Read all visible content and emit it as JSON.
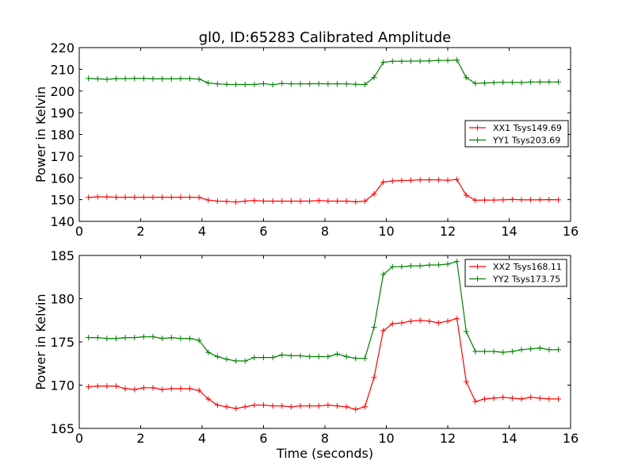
{
  "title": "gl0, ID:65283 Calibrated Amplitude",
  "colors": {
    "xx": "#ff0000",
    "yy": "#008000",
    "axis": "#000000",
    "background": "#ffffff"
  },
  "chart_data": [
    {
      "type": "line",
      "ylabel": "Power in Kelvin",
      "xlabel": "",
      "xlim": [
        0,
        16
      ],
      "ylim": [
        140,
        220
      ],
      "xticks": [
        0,
        2,
        4,
        6,
        8,
        10,
        12,
        14,
        16
      ],
      "yticks": [
        140,
        150,
        160,
        170,
        180,
        190,
        200,
        210,
        220
      ],
      "grid": false,
      "legend_position": "center-right",
      "x": [
        0.3,
        0.6,
        0.9,
        1.2,
        1.5,
        1.8,
        2.1,
        2.4,
        2.7,
        3.0,
        3.3,
        3.6,
        3.9,
        4.2,
        4.5,
        4.8,
        5.1,
        5.4,
        5.7,
        6.0,
        6.3,
        6.6,
        6.9,
        7.2,
        7.5,
        7.8,
        8.1,
        8.4,
        8.7,
        9.0,
        9.3,
        9.6,
        9.9,
        10.2,
        10.5,
        10.8,
        11.1,
        11.4,
        11.7,
        12.0,
        12.3,
        12.6,
        12.9,
        13.2,
        13.5,
        13.8,
        14.1,
        14.4,
        14.7,
        15.0,
        15.3,
        15.6
      ],
      "series": [
        {
          "name": "XX1 Tsys149.69",
          "color": "#ff0000",
          "values": [
            151,
            151.3,
            151.3,
            151.1,
            151.1,
            151.1,
            151.1,
            151.1,
            151.1,
            151.1,
            151.1,
            151.1,
            151.0,
            149.8,
            149.3,
            149.2,
            148.9,
            149.3,
            149.6,
            149.3,
            149.3,
            149.3,
            149.3,
            149.3,
            149.3,
            149.6,
            149.3,
            149.3,
            149.3,
            149.0,
            149.3,
            152.6,
            158.1,
            158.6,
            158.8,
            158.9,
            159.1,
            159.1,
            159.1,
            158.9,
            159.3,
            152.0,
            149.7,
            149.8,
            149.8,
            149.9,
            150.1,
            149.9,
            149.9,
            149.9,
            150.0,
            149.9
          ]
        },
        {
          "name": "YY1 Tsys203.69",
          "color": "#008000",
          "values": [
            205.8,
            205.6,
            205.4,
            205.7,
            205.7,
            205.8,
            205.8,
            205.6,
            205.6,
            205.6,
            205.7,
            205.7,
            205.5,
            203.7,
            203.3,
            203.1,
            203.0,
            203.0,
            203.0,
            203.4,
            202.9,
            203.5,
            203.3,
            203.3,
            203.3,
            203.4,
            203.3,
            203.3,
            203.3,
            203.1,
            203.0,
            206.3,
            213.2,
            213.7,
            213.7,
            213.8,
            213.8,
            213.9,
            214.1,
            214.1,
            214.3,
            206.2,
            203.5,
            203.7,
            203.9,
            204.0,
            204.0,
            203.9,
            204.2,
            204.2,
            204.2,
            204.2
          ]
        }
      ]
    },
    {
      "type": "line",
      "ylabel": "Power in Kelvin",
      "xlabel": "Time (seconds)",
      "xlim": [
        0,
        16
      ],
      "ylim": [
        165,
        185
      ],
      "xticks": [
        0,
        2,
        4,
        6,
        8,
        10,
        12,
        14,
        16
      ],
      "yticks": [
        165,
        170,
        175,
        180,
        185
      ],
      "grid": false,
      "legend_position": "top-right",
      "x": [
        0.3,
        0.6,
        0.9,
        1.2,
        1.5,
        1.8,
        2.1,
        2.4,
        2.7,
        3.0,
        3.3,
        3.6,
        3.9,
        4.2,
        4.5,
        4.8,
        5.1,
        5.4,
        5.7,
        6.0,
        6.3,
        6.6,
        6.9,
        7.2,
        7.5,
        7.8,
        8.1,
        8.4,
        8.7,
        9.0,
        9.3,
        9.6,
        9.9,
        10.2,
        10.5,
        10.8,
        11.1,
        11.4,
        11.7,
        12.0,
        12.3,
        12.6,
        12.9,
        13.2,
        13.5,
        13.8,
        14.1,
        14.4,
        14.7,
        15.0,
        15.3,
        15.6
      ],
      "series": [
        {
          "name": "XX2 Tsys168.11",
          "color": "#ff0000",
          "values": [
            169.8,
            169.9,
            169.9,
            169.9,
            169.6,
            169.5,
            169.7,
            169.7,
            169.5,
            169.6,
            169.6,
            169.6,
            169.4,
            168.4,
            167.7,
            167.5,
            167.3,
            167.5,
            167.7,
            167.7,
            167.6,
            167.6,
            167.5,
            167.6,
            167.6,
            167.6,
            167.7,
            167.6,
            167.5,
            167.2,
            167.5,
            170.9,
            176.3,
            177.1,
            177.2,
            177.4,
            177.5,
            177.4,
            177.2,
            177.4,
            177.7,
            170.4,
            168.1,
            168.4,
            168.5,
            168.6,
            168.5,
            168.4,
            168.6,
            168.5,
            168.4,
            168.4
          ]
        },
        {
          "name": "YY2 Tsys173.75",
          "color": "#008000",
          "values": [
            175.5,
            175.5,
            175.4,
            175.4,
            175.5,
            175.5,
            175.6,
            175.6,
            175.4,
            175.5,
            175.4,
            175.4,
            175.2,
            173.8,
            173.3,
            173.0,
            172.8,
            172.8,
            173.2,
            173.2,
            173.2,
            173.5,
            173.4,
            173.4,
            173.3,
            173.3,
            173.3,
            173.6,
            173.3,
            173.1,
            173.1,
            176.7,
            182.8,
            183.7,
            183.7,
            183.8,
            183.8,
            183.9,
            183.9,
            184.0,
            184.3,
            176.2,
            173.9,
            173.9,
            173.9,
            173.8,
            173.9,
            174.1,
            174.2,
            174.3,
            174.1,
            174.1
          ]
        }
      ]
    }
  ]
}
